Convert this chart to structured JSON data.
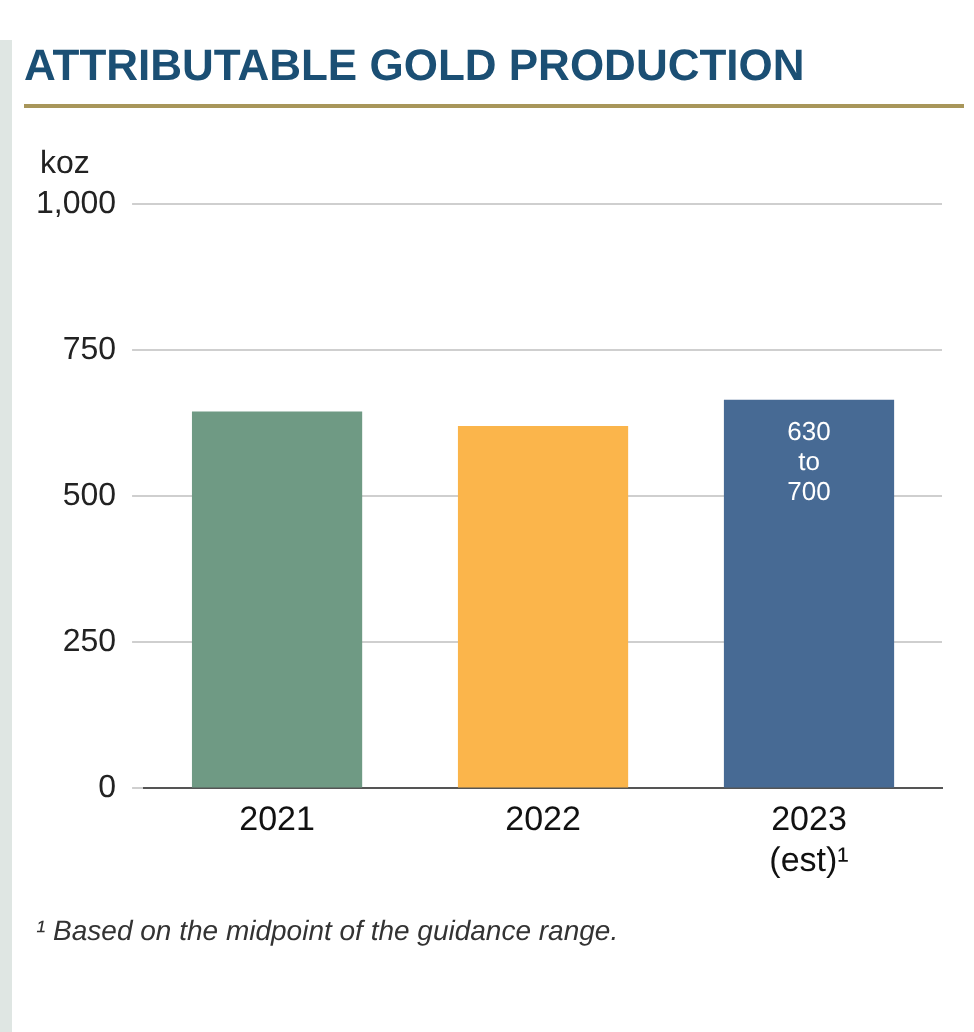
{
  "chart_data": {
    "type": "bar",
    "title": "ATTRIBUTABLE GOLD PRODUCTION",
    "ylabel": "koz",
    "categories": [
      "2021",
      "2022",
      "2023 (est)¹"
    ],
    "values": [
      645,
      620,
      665
    ],
    "colors": [
      "#6f9a84",
      "#fbb54b",
      "#476a94"
    ],
    "ylim": [
      0,
      1000
    ],
    "yticks": [
      0,
      250,
      500,
      750,
      {
        "value": 1000,
        "label": "1,000"
      }
    ],
    "grid": "y",
    "annotations": [
      {
        "text": "630 to 700",
        "x": "2023 (est)¹",
        "y": 665
      },
      "¹   Based on the midpoint of the guidance range."
    ]
  }
}
